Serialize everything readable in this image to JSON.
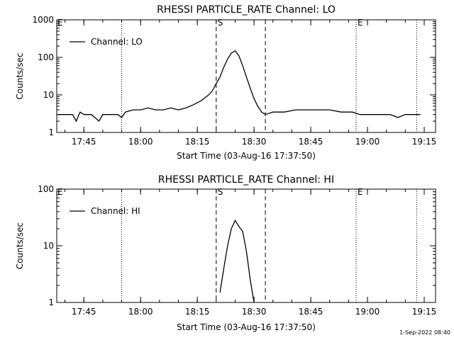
{
  "timestamp": "1-Sep-2022 08:40",
  "chart_data": [
    {
      "type": "line",
      "title": "RHESSI PARTICLE_RATE Channel: LO",
      "xlabel": "Start Time (03-Aug-16 17:37:50)",
      "ylabel": "Counts/sec",
      "yscale": "log",
      "xlim": [
        "17:37:50",
        "19:18:00"
      ],
      "ylim": [
        1,
        1000
      ],
      "xticks": [
        "17:45",
        "18:00",
        "18:15",
        "18:30",
        "18:45",
        "19:00",
        "19:15"
      ],
      "yticks": [
        "1",
        "10",
        "100",
        "1000"
      ],
      "legend": "top-left",
      "markers_dotted": [
        "17:55",
        "19:13"
      ],
      "markers_dashed": [
        "18:20",
        "18:33"
      ],
      "markers_dotted_labeled": [
        {
          "time": "18:57",
          "label": "E"
        }
      ],
      "markers_dashed_labeled": [
        {
          "time": "18:20",
          "label": "S"
        }
      ],
      "edge_label": "E",
      "series": [
        {
          "name": "Channel: LO",
          "points": [
            [
              "17:38",
              3
            ],
            [
              "17:40",
              3
            ],
            [
              "17:42",
              3
            ],
            [
              "17:43",
              2
            ],
            [
              "17:44",
              3.5
            ],
            [
              "17:45",
              3
            ],
            [
              "17:47",
              3
            ],
            [
              "17:49",
              2
            ],
            [
              "17:50",
              3
            ],
            [
              "17:52",
              3
            ],
            [
              "17:54",
              3
            ],
            [
              "17:55",
              2.5
            ],
            [
              "17:56",
              3.5
            ],
            [
              "17:58",
              4
            ],
            [
              "18:00",
              4
            ],
            [
              "18:02",
              4.5
            ],
            [
              "18:04",
              4
            ],
            [
              "18:06",
              4
            ],
            [
              "18:08",
              4.5
            ],
            [
              "18:10",
              4
            ],
            [
              "18:12",
              4.5
            ],
            [
              "18:14",
              5.5
            ],
            [
              "18:16",
              7
            ],
            [
              "18:18",
              10
            ],
            [
              "18:19",
              13
            ],
            [
              "18:20",
              20
            ],
            [
              "18:21",
              30
            ],
            [
              "18:22",
              55
            ],
            [
              "18:23",
              90
            ],
            [
              "18:24",
              130
            ],
            [
              "18:25",
              150
            ],
            [
              "18:26",
              110
            ],
            [
              "18:27",
              60
            ],
            [
              "18:28",
              30
            ],
            [
              "18:29",
              15
            ],
            [
              "18:30",
              8
            ],
            [
              "18:31",
              5
            ],
            [
              "18:32",
              3.5
            ],
            [
              "18:33",
              3
            ],
            [
              "18:35",
              3.5
            ],
            [
              "18:38",
              3.5
            ],
            [
              "18:41",
              4
            ],
            [
              "18:44",
              4
            ],
            [
              "18:47",
              4
            ],
            [
              "18:50",
              4
            ],
            [
              "18:53",
              3.5
            ],
            [
              "18:56",
              3.5
            ],
            [
              "18:58",
              3
            ],
            [
              "19:00",
              3
            ],
            [
              "19:02",
              3
            ],
            [
              "19:04",
              3
            ],
            [
              "19:06",
              3
            ],
            [
              "19:08",
              2.5
            ],
            [
              "19:10",
              3
            ],
            [
              "19:12",
              3
            ],
            [
              "19:14",
              3
            ]
          ]
        }
      ]
    },
    {
      "type": "line",
      "title": "RHESSI PARTICLE_RATE Channel: HI",
      "xlabel": "Start Time (03-Aug-16 17:37:50)",
      "ylabel": "Counts/sec",
      "yscale": "log",
      "xlim": [
        "17:37:50",
        "19:18:00"
      ],
      "ylim": [
        1,
        100
      ],
      "xticks": [
        "17:45",
        "18:00",
        "18:15",
        "18:30",
        "18:45",
        "19:00",
        "19:15"
      ],
      "yticks": [
        "1",
        "10",
        "100"
      ],
      "legend": "top-left",
      "markers_dotted": [
        "17:55",
        "19:13"
      ],
      "markers_dashed": [
        "18:20",
        "18:33"
      ],
      "markers_dotted_labeled": [
        {
          "time": "18:57",
          "label": "E"
        }
      ],
      "markers_dashed_labeled": [
        {
          "time": "18:20",
          "label": "S"
        }
      ],
      "edge_label": "E",
      "series": [
        {
          "name": "Channel: HI",
          "points": [
            [
              "18:21",
              1.5
            ],
            [
              "18:22",
              4
            ],
            [
              "18:23",
              10
            ],
            [
              "18:24",
              20
            ],
            [
              "18:25",
              28
            ],
            [
              "18:26",
              22
            ],
            [
              "18:27",
              18
            ],
            [
              "18:28",
              8
            ],
            [
              "18:29",
              2.5
            ],
            [
              "18:30",
              1
            ]
          ]
        }
      ]
    }
  ]
}
